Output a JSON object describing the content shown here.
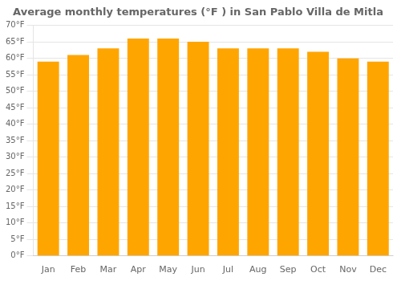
{
  "chart_data": {
    "type": "bar",
    "title": "Average monthly temperatures (°F ) in San Pablo Villa de Mitla",
    "categories": [
      "Jan",
      "Feb",
      "Mar",
      "Apr",
      "May",
      "Jun",
      "Jul",
      "Aug",
      "Sep",
      "Oct",
      "Nov",
      "Dec"
    ],
    "values": [
      59,
      61,
      63,
      66,
      66,
      65,
      63,
      63,
      63,
      62,
      60,
      59
    ],
    "color": "#FFA500",
    "ylim": [
      0,
      70
    ],
    "yticks": [
      {
        "value": 0,
        "label": "0°F"
      },
      {
        "value": 5,
        "label": "5°F"
      },
      {
        "value": 10,
        "label": "10°F"
      },
      {
        "value": 15,
        "label": "15°F"
      },
      {
        "value": 20,
        "label": "20°F"
      },
      {
        "value": 25,
        "label": "25°F"
      },
      {
        "value": 30,
        "label": "30°F"
      },
      {
        "value": 35,
        "label": "35°F"
      },
      {
        "value": 40,
        "label": "40°F"
      },
      {
        "value": 45,
        "label": "45°F"
      },
      {
        "value": 50,
        "label": "50°F"
      },
      {
        "value": 55,
        "label": "55°F"
      },
      {
        "value": 60,
        "label": "60°F"
      },
      {
        "value": 65,
        "label": "65°F"
      },
      {
        "value": 70,
        "label": "70°F"
      }
    ],
    "grid": true
  }
}
